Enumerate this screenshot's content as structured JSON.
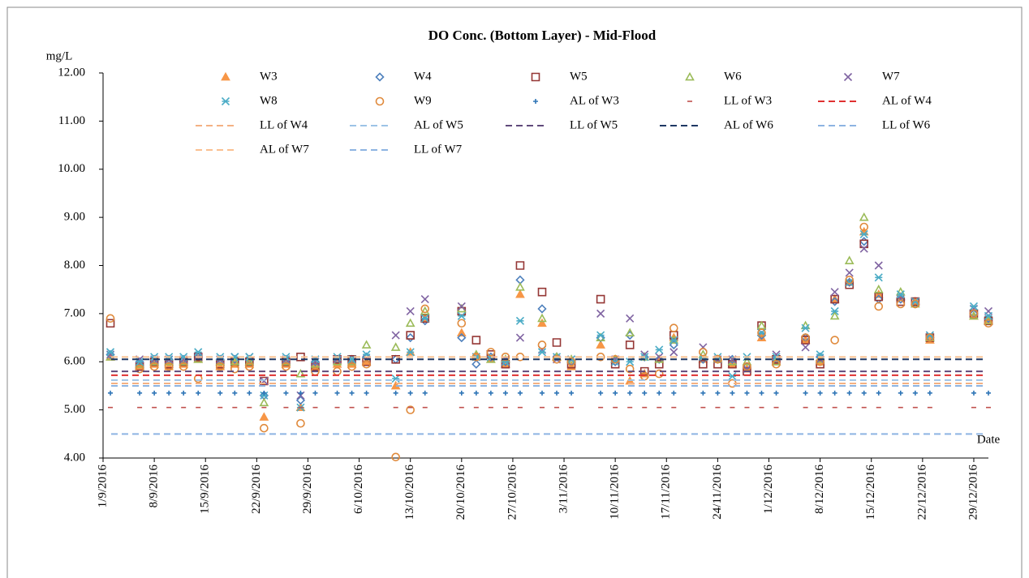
{
  "chart_data": {
    "type": "scatter",
    "title": "DO Conc. (Bottom Layer) - Mid-Flood",
    "y_label": "mg/L",
    "x_label": "Date",
    "xlim": [
      "1/9/2016",
      "31/12/2016"
    ],
    "xticks": [
      "1/9/2016",
      "8/9/2016",
      "15/9/2016",
      "22/9/2016",
      "29/9/2016",
      "6/10/2016",
      "13/10/2016",
      "20/10/2016",
      "27/10/2016",
      "3/11/2016",
      "10/11/2016",
      "17/11/2016",
      "24/11/2016",
      "1/12/2016",
      "8/12/2016",
      "15/12/2016",
      "22/12/2016",
      "29/12/2016"
    ],
    "ylim": [
      4,
      12
    ],
    "yticks": [
      {
        "value": 4,
        "label": "4.00"
      },
      {
        "value": 5,
        "label": "5.00"
      },
      {
        "value": 6,
        "label": "6.00"
      },
      {
        "value": 7,
        "label": "7.00"
      },
      {
        "value": 8,
        "label": "8.00"
      },
      {
        "value": 9,
        "label": "9.00"
      },
      {
        "value": 10,
        "label": "10.00"
      },
      {
        "value": 11,
        "label": "11.00"
      },
      {
        "value": 12,
        "label": "12.00"
      }
    ],
    "x": [
      "2/9/2016",
      "6/9/2016",
      "8/9/2016",
      "10/9/2016",
      "12/9/2016",
      "14/9/2016",
      "17/9/2016",
      "19/9/2016",
      "21/9/2016",
      "23/9/2016",
      "26/9/2016",
      "28/9/2016",
      "30/9/2016",
      "3/10/2016",
      "5/10/2016",
      "7/10/2016",
      "11/10/2016",
      "13/10/2016",
      "15/10/2016",
      "20/10/2016",
      "22/10/2016",
      "24/10/2016",
      "26/10/2016",
      "28/10/2016",
      "31/10/2016",
      "2/11/2016",
      "4/11/2016",
      "8/11/2016",
      "10/11/2016",
      "12/11/2016",
      "14/11/2016",
      "16/11/2016",
      "18/11/2016",
      "22/11/2016",
      "24/11/2016",
      "26/11/2016",
      "28/11/2016",
      "30/11/2016",
      "2/12/2016",
      "6/12/2016",
      "8/12/2016",
      "10/12/2016",
      "12/12/2016",
      "14/12/2016",
      "16/12/2016",
      "19/12/2016",
      "21/12/2016",
      "23/12/2016",
      "29/12/2016",
      "31/12/2016"
    ],
    "series": [
      {
        "name": "W3",
        "color": "#f79646",
        "marker": "triangle-filled",
        "values": [
          6.1,
          5.9,
          5.95,
          5.9,
          5.95,
          6.05,
          5.9,
          5.95,
          5.95,
          4.85,
          5.95,
          5.05,
          5.9,
          5.95,
          5.95,
          6.0,
          5.5,
          6.2,
          6.9,
          6.6,
          6.1,
          6.05,
          5.95,
          7.4,
          6.8,
          6.1,
          5.9,
          6.35,
          6.05,
          5.6,
          5.75,
          6.05,
          6.5,
          6.05,
          6.05,
          5.95,
          5.85,
          6.5,
          6.0,
          6.45,
          6.0,
          7.3,
          7.65,
          8.7,
          7.4,
          7.35,
          7.25,
          6.45,
          6.95,
          6.85
        ]
      },
      {
        "name": "W4",
        "color": "#4f81bd",
        "marker": "diamond",
        "values": [
          6.15,
          6.0,
          6.05,
          6.05,
          6.05,
          6.1,
          6.05,
          6.05,
          6.05,
          5.3,
          6.05,
          5.2,
          6.0,
          6.05,
          6.05,
          6.1,
          6.05,
          6.5,
          6.85,
          6.5,
          5.95,
          6.1,
          6.0,
          7.7,
          7.1,
          6.1,
          6.0,
          6.5,
          6.0,
          6.55,
          6.1,
          6.05,
          6.35,
          6.05,
          6.05,
          6.05,
          5.9,
          6.55,
          6.05,
          6.5,
          6.1,
          7.25,
          7.65,
          8.5,
          7.3,
          7.3,
          7.2,
          6.5,
          7.0,
          6.9
        ]
      },
      {
        "name": "W5",
        "color": "#953735",
        "marker": "square",
        "values": [
          6.8,
          5.9,
          6.0,
          5.95,
          6.0,
          6.1,
          5.95,
          6.0,
          6.0,
          5.6,
          6.0,
          6.1,
          5.9,
          6.05,
          6.05,
          6.0,
          6.05,
          6.55,
          6.9,
          7.05,
          6.45,
          6.15,
          5.95,
          8.0,
          7.45,
          6.4,
          5.95,
          7.3,
          5.95,
          6.35,
          5.8,
          5.95,
          6.55,
          5.95,
          5.95,
          5.95,
          5.8,
          6.75,
          6.05,
          6.45,
          5.95,
          7.3,
          7.6,
          8.45,
          7.35,
          7.25,
          7.25,
          6.5,
          7.0,
          6.85
        ]
      },
      {
        "name": "W6",
        "color": "#9bbb59",
        "marker": "triangle",
        "values": [
          6.1,
          5.95,
          6.0,
          6.0,
          6.0,
          6.05,
          6.0,
          6.0,
          6.0,
          5.15,
          6.0,
          5.75,
          5.95,
          6.0,
          6.0,
          6.35,
          6.3,
          6.8,
          7.05,
          7.1,
          6.15,
          6.05,
          6.05,
          7.55,
          6.9,
          6.1,
          6.05,
          6.5,
          6.05,
          6.6,
          6.1,
          6.05,
          6.45,
          6.15,
          6.05,
          6.0,
          6.0,
          6.75,
          6.0,
          6.75,
          6.05,
          6.95,
          8.1,
          9.0,
          7.5,
          7.45,
          7.2,
          6.5,
          6.95,
          6.85
        ]
      },
      {
        "name": "W7",
        "color": "#8064a2",
        "marker": "x",
        "values": [
          6.15,
          6.05,
          6.05,
          6.05,
          6.05,
          6.1,
          6.05,
          6.1,
          6.1,
          5.6,
          6.05,
          5.3,
          6.0,
          6.05,
          6.05,
          6.05,
          6.55,
          7.05,
          7.3,
          7.15,
          6.1,
          6.1,
          6.05,
          6.5,
          6.25,
          6.05,
          6.05,
          7.0,
          6.05,
          6.9,
          6.15,
          6.1,
          6.2,
          6.3,
          6.05,
          6.05,
          5.85,
          6.6,
          6.15,
          6.3,
          6.05,
          7.45,
          7.85,
          8.35,
          8.0,
          7.3,
          7.25,
          6.55,
          7.1,
          7.05
        ]
      },
      {
        "name": "W8",
        "color": "#4bacc6",
        "marker": "asterisk",
        "values": [
          6.2,
          6.0,
          6.1,
          6.1,
          6.1,
          6.2,
          6.1,
          6.1,
          6.1,
          5.3,
          6.1,
          5.05,
          6.05,
          6.1,
          6.05,
          6.15,
          5.65,
          6.2,
          6.9,
          6.95,
          6.1,
          6.1,
          6.0,
          6.85,
          6.2,
          6.1,
          6.05,
          6.55,
          6.0,
          6.0,
          6.1,
          6.25,
          6.45,
          6.1,
          6.1,
          5.7,
          6.1,
          6.6,
          6.1,
          6.7,
          6.15,
          7.05,
          7.65,
          8.65,
          7.75,
          7.4,
          7.25,
          6.55,
          7.15,
          6.95
        ]
      },
      {
        "name": "W9",
        "color": "#e08a3c",
        "marker": "circle",
        "values": [
          6.9,
          5.85,
          5.9,
          5.9,
          5.9,
          5.65,
          5.9,
          5.85,
          5.9,
          4.62,
          5.9,
          4.72,
          5.8,
          5.8,
          5.9,
          5.95,
          4.02,
          5.0,
          7.1,
          6.8,
          6.1,
          6.2,
          6.1,
          6.1,
          6.35,
          6.05,
          6.0,
          6.1,
          6.05,
          5.85,
          5.7,
          5.75,
          6.7,
          6.2,
          6.05,
          5.55,
          5.9,
          6.6,
          5.95,
          6.5,
          6.0,
          6.45,
          7.7,
          8.8,
          7.15,
          7.2,
          7.2,
          6.5,
          7.0,
          6.8
        ]
      },
      {
        "name": "AL of W3",
        "color": "#2e75b6",
        "marker": "plus",
        "value": 5.35
      },
      {
        "name": "LL of W3",
        "color": "#c0504d",
        "marker": "dash",
        "value": 5.05
      },
      {
        "name": "AL of W4",
        "color": "#e03030",
        "marker": "line",
        "value": 5.72
      },
      {
        "name": "LL of W4",
        "color": "#f4b183",
        "marker": "line",
        "value": 5.55
      },
      {
        "name": "AL of W5",
        "color": "#9dc3e6",
        "marker": "line",
        "value": 5.62
      },
      {
        "name": "LL of W5",
        "color": "#604a7b",
        "marker": "line",
        "value": 5.8
      },
      {
        "name": "AL of W6",
        "color": "#1f3864",
        "marker": "line",
        "value": 6.05
      },
      {
        "name": "LL of W6",
        "color": "#8db4e2",
        "marker": "line",
        "value": 5.5
      },
      {
        "name": "AL of W7",
        "color": "#fac090",
        "marker": "line",
        "value": 6.1
      },
      {
        "name": "LL of W7",
        "color": "#8db4e2",
        "marker": "line",
        "value": 4.5
      }
    ]
  }
}
